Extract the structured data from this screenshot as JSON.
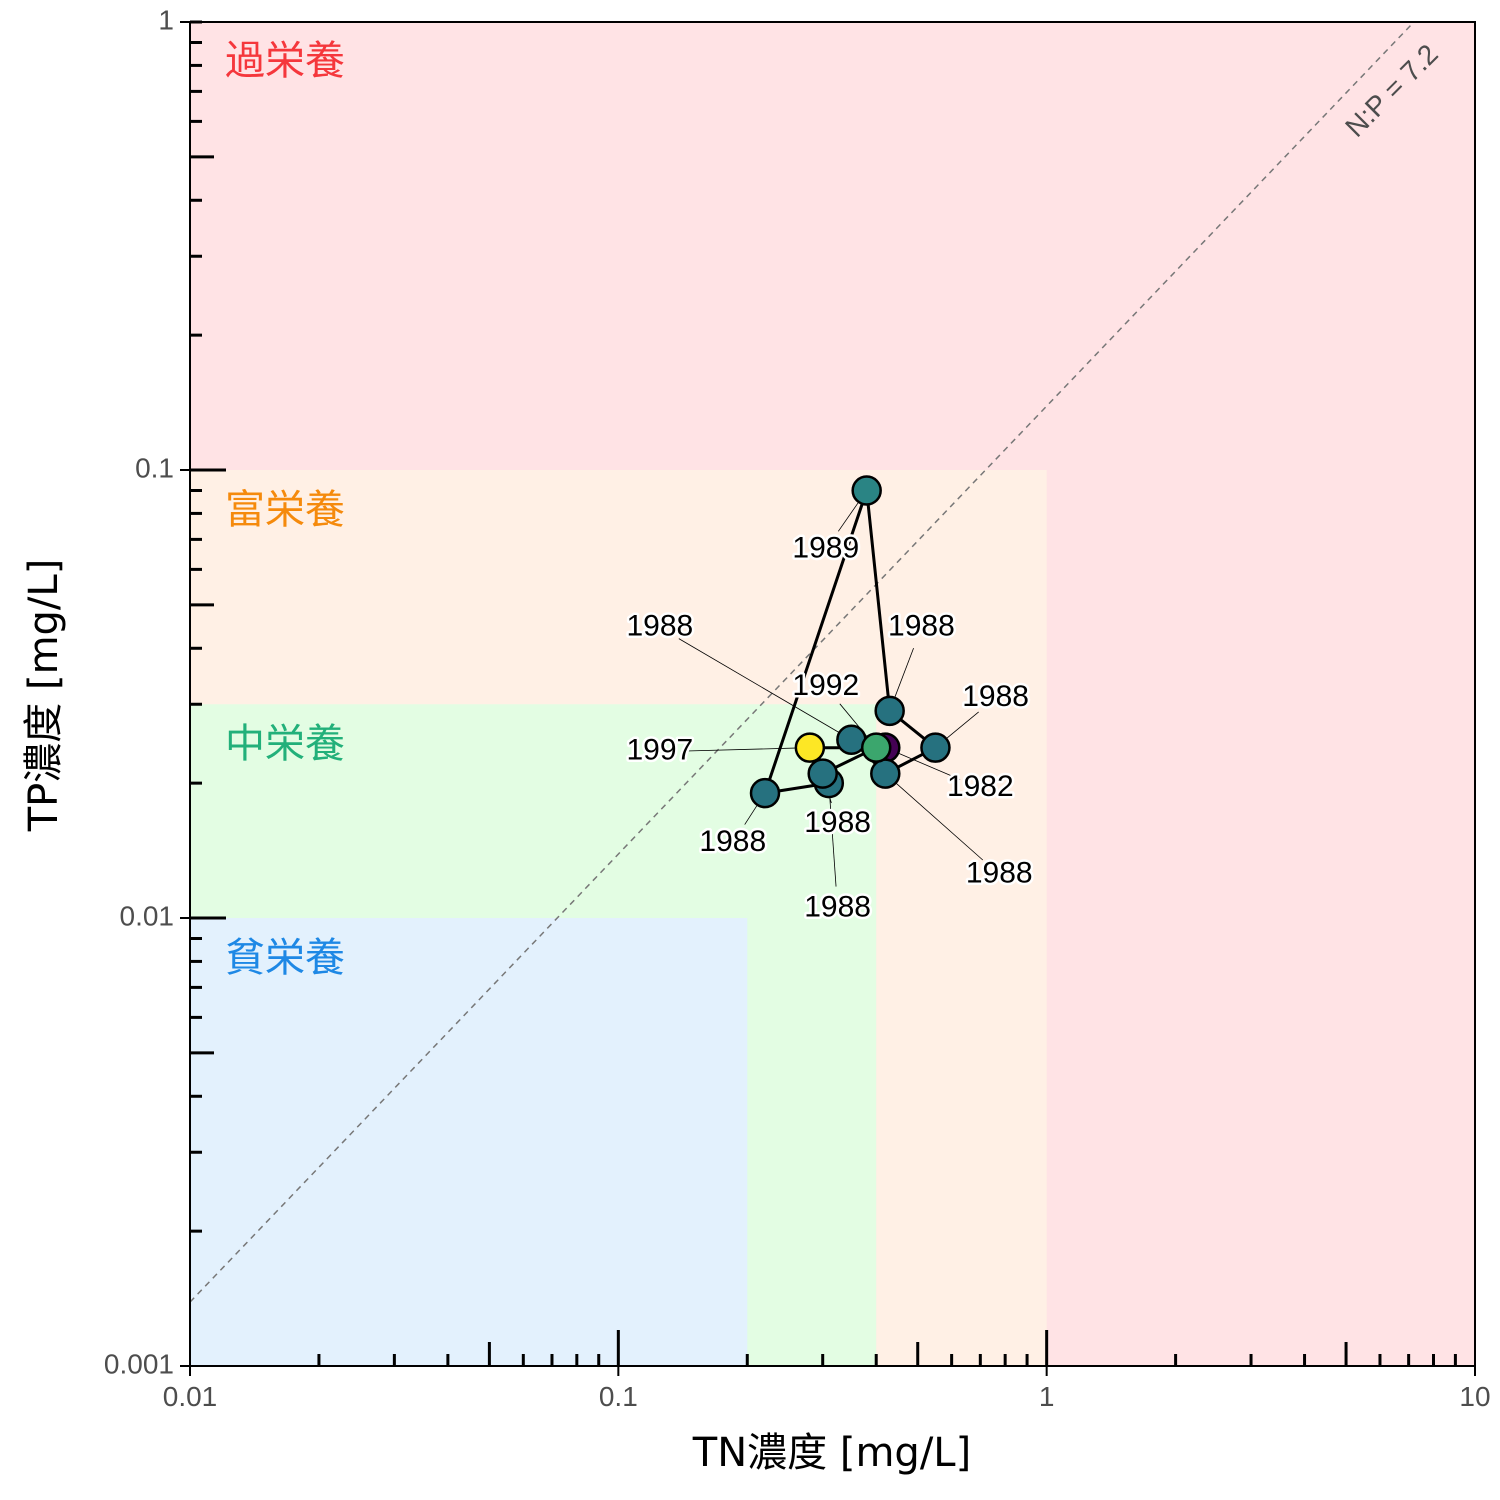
{
  "chart_data": {
    "type": "scatter",
    "x_scale": "log",
    "y_scale": "log",
    "xlim": [
      0.01,
      10
    ],
    "ylim": [
      0.001,
      1
    ],
    "xlabel": "TN濃度 [mg/L]",
    "ylabel": "TP濃度 [mg/L]",
    "x_tick_labels": [
      {
        "value": 0.01,
        "label": "0.01"
      },
      {
        "value": 0.1,
        "label": "0.1"
      },
      {
        "value": 1,
        "label": "1"
      },
      {
        "value": 10,
        "label": "10"
      }
    ],
    "y_tick_labels": [
      {
        "value": 0.001,
        "label": "0.001"
      },
      {
        "value": 0.01,
        "label": "0.01"
      },
      {
        "value": 0.1,
        "label": "0.1"
      },
      {
        "value": 1,
        "label": "1"
      }
    ],
    "zones": [
      {
        "name": "過栄養",
        "tn_max": 10,
        "tp_max": 1,
        "fill": "#ffe3e5",
        "label_color": "#f5373c"
      },
      {
        "name": "富栄養",
        "tn_max": 1,
        "tp_max": 0.1,
        "fill": "#fff0e5",
        "label_color": "#f58a0c"
      },
      {
        "name": "中栄養",
        "tn_max": 0.4,
        "tp_max": 0.03,
        "fill": "#e3fde3",
        "label_color": "#22b07a"
      },
      {
        "name": "貧栄養",
        "tn_max": 0.2,
        "tp_max": 0.01,
        "fill": "#e3f1fd",
        "label_color": "#1e88e5"
      }
    ],
    "reference_line": {
      "label": "N:P = 7.2",
      "ratio": 7.2,
      "color": "#777777",
      "style": "dashed"
    },
    "points": [
      {
        "label": "1988",
        "x": 0.22,
        "y": 0.019,
        "color": "#26717f"
      },
      {
        "label": "1989",
        "x": 0.38,
        "y": 0.09,
        "color": "#2a8484"
      },
      {
        "label": "1988",
        "x": 0.43,
        "y": 0.029,
        "color": "#26717f"
      },
      {
        "label": "1988",
        "x": 0.55,
        "y": 0.024,
        "color": "#26717f"
      },
      {
        "label": "1988",
        "x": 0.42,
        "y": 0.021,
        "color": "#26717f"
      },
      {
        "label": "1988",
        "x": 0.31,
        "y": 0.02,
        "color": "#26717f"
      },
      {
        "label": "1988",
        "x": 0.3,
        "y": 0.021,
        "color": "#26717f"
      },
      {
        "label": "1988",
        "x": 0.35,
        "y": 0.025,
        "color": "#26717f"
      },
      {
        "label": "1982",
        "x": 0.42,
        "y": 0.024,
        "color": "#440154"
      },
      {
        "label": "1992",
        "x": 0.4,
        "y": 0.024,
        "color": "#3ba66d"
      },
      {
        "label": "1997",
        "x": 0.28,
        "y": 0.024,
        "color": "#fde725"
      }
    ],
    "path_order": [
      10,
      8,
      9,
      6,
      5,
      0,
      1,
      2,
      3,
      4,
      7
    ],
    "annotations": [
      {
        "point": 0,
        "label": "1988",
        "x": 0.185,
        "y": 0.0147
      },
      {
        "point": 1,
        "label": "1989",
        "x": 0.305,
        "y": 0.0665
      },
      {
        "point": 2,
        "label": "1988",
        "x": 0.51,
        "y": 0.0445
      },
      {
        "point": 3,
        "label": "1988",
        "x": 0.76,
        "y": 0.031
      },
      {
        "point": 4,
        "label": "1988",
        "x": 0.775,
        "y": 0.0125
      },
      {
        "point": 5,
        "label": "1988",
        "x": 0.325,
        "y": 0.0105
      },
      {
        "point": 6,
        "label": "1988",
        "x": 0.325,
        "y": 0.0162
      },
      {
        "point": 7,
        "label": "1988",
        "x": 0.125,
        "y": 0.0445
      },
      {
        "point": 8,
        "label": "1982",
        "x": 0.7,
        "y": 0.0195
      },
      {
        "point": 9,
        "label": "1992",
        "x": 0.305,
        "y": 0.0328
      },
      {
        "point": 10,
        "label": "1997",
        "x": 0.125,
        "y": 0.0235
      }
    ]
  }
}
